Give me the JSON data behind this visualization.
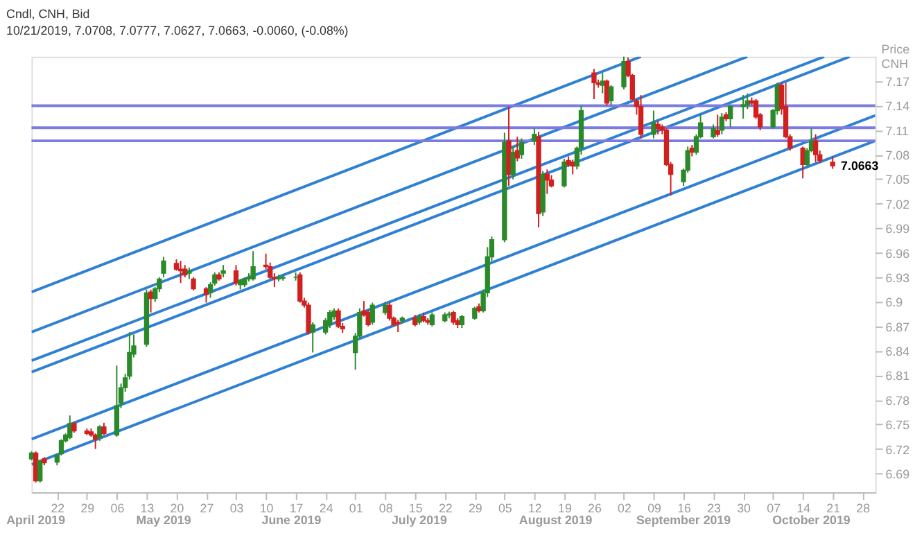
{
  "chart_data": {
    "type": "candlestick",
    "title": "Cndl, CNH, Bid",
    "subtitle": "10/21/2019, 7.0708, 7.0777, 7.0627, 7.0663, -0.0060, (-0.08%)",
    "ylabel": "Price CNH",
    "x": [
      "2019-04-16",
      "2019-04-17",
      "2019-04-18",
      "2019-04-19",
      "2019-04-22",
      "2019-04-23",
      "2019-04-24",
      "2019-04-25",
      "2019-04-26",
      "2019-04-29",
      "2019-04-30",
      "2019-05-01",
      "2019-05-02",
      "2019-05-03",
      "2019-05-06",
      "2019-05-07",
      "2019-05-08",
      "2019-05-09",
      "2019-05-10",
      "2019-05-13",
      "2019-05-14",
      "2019-05-15",
      "2019-05-16",
      "2019-05-17",
      "2019-05-20",
      "2019-05-21",
      "2019-05-22",
      "2019-05-23",
      "2019-05-24",
      "2019-05-27",
      "2019-05-28",
      "2019-05-29",
      "2019-05-30",
      "2019-05-31",
      "2019-06-03",
      "2019-06-04",
      "2019-06-05",
      "2019-06-06",
      "2019-06-07",
      "2019-06-10",
      "2019-06-11",
      "2019-06-12",
      "2019-06-13",
      "2019-06-14",
      "2019-06-17",
      "2019-06-18",
      "2019-06-19",
      "2019-06-20",
      "2019-06-21",
      "2019-06-24",
      "2019-06-25",
      "2019-06-26",
      "2019-06-27",
      "2019-06-28",
      "2019-07-01",
      "2019-07-02",
      "2019-07-03",
      "2019-07-04",
      "2019-07-05",
      "2019-07-08",
      "2019-07-09",
      "2019-07-10",
      "2019-07-11",
      "2019-07-12",
      "2019-07-15",
      "2019-07-16",
      "2019-07-17",
      "2019-07-18",
      "2019-07-19",
      "2019-07-22",
      "2019-07-23",
      "2019-07-24",
      "2019-07-25",
      "2019-07-26",
      "2019-07-29",
      "2019-07-30",
      "2019-07-31",
      "2019-08-01",
      "2019-08-02",
      "2019-08-05",
      "2019-08-06",
      "2019-08-07",
      "2019-08-08",
      "2019-08-09",
      "2019-08-12",
      "2019-08-13",
      "2019-08-14",
      "2019-08-15",
      "2019-08-16",
      "2019-08-19",
      "2019-08-20",
      "2019-08-21",
      "2019-08-22",
      "2019-08-23",
      "2019-08-26",
      "2019-08-27",
      "2019-08-28",
      "2019-08-29",
      "2019-08-30",
      "2019-09-02",
      "2019-09-03",
      "2019-09-04",
      "2019-09-05",
      "2019-09-06",
      "2019-09-09",
      "2019-09-10",
      "2019-09-11",
      "2019-09-12",
      "2019-09-13",
      "2019-09-16",
      "2019-09-17",
      "2019-09-18",
      "2019-09-19",
      "2019-09-20",
      "2019-09-23",
      "2019-09-24",
      "2019-09-25",
      "2019-09-26",
      "2019-09-27",
      "2019-09-30",
      "2019-10-01",
      "2019-10-02",
      "2019-10-03",
      "2019-10-04",
      "2019-10-07",
      "2019-10-08",
      "2019-10-09",
      "2019-10-10",
      "2019-10-11",
      "2019-10-14",
      "2019-10-15",
      "2019-10-16",
      "2019-10-17",
      "2019-10-18",
      "2019-10-21"
    ],
    "ohlc": [
      [
        6.708,
        6.717,
        6.706,
        6.715
      ],
      [
        6.715,
        6.717,
        6.679,
        6.681
      ],
      [
        6.681,
        6.707,
        6.679,
        6.706
      ],
      [
        6.708,
        6.71,
        6.7,
        6.703
      ],
      [
        6.704,
        6.714,
        6.7,
        6.712
      ],
      [
        6.714,
        6.732,
        6.712,
        6.73
      ],
      [
        6.73,
        6.739,
        6.728,
        6.737
      ],
      [
        6.734,
        6.761,
        6.732,
        6.751
      ],
      [
        6.751,
        6.753,
        6.74,
        6.742
      ],
      [
        6.742,
        6.745,
        6.737,
        6.739
      ],
      [
        6.741,
        6.745,
        6.735,
        6.737
      ],
      [
        6.737,
        6.739,
        6.72,
        6.732
      ],
      [
        6.734,
        6.749,
        6.73,
        6.747
      ],
      [
        6.747,
        6.752,
        6.737,
        6.739
      ],
      [
        6.737,
        6.822,
        6.735,
        6.773
      ],
      [
        6.776,
        6.8,
        6.77,
        6.795
      ],
      [
        6.795,
        6.812,
        6.79,
        6.807
      ],
      [
        6.809,
        6.863,
        6.805,
        6.838
      ],
      [
        6.836,
        6.86,
        6.832,
        6.846
      ],
      [
        6.848,
        6.915,
        6.845,
        6.911
      ],
      [
        6.912,
        6.915,
        6.887,
        6.904
      ],
      [
        6.904,
        6.918,
        6.9,
        6.916
      ],
      [
        6.916,
        6.93,
        6.912,
        6.928
      ],
      [
        6.935,
        6.955,
        6.93,
        6.95
      ],
      [
        6.947,
        6.952,
        6.938,
        6.94
      ],
      [
        6.94,
        6.95,
        6.923,
        6.938
      ],
      [
        6.94,
        6.945,
        6.93,
        6.933
      ],
      [
        6.935,
        6.942,
        6.928,
        6.938
      ],
      [
        6.928,
        6.93,
        6.914,
        6.916
      ],
      [
        6.916,
        6.918,
        6.899,
        6.909
      ],
      [
        6.911,
        6.924,
        6.905,
        6.921
      ],
      [
        6.923,
        6.936,
        6.92,
        6.933
      ],
      [
        6.933,
        6.936,
        6.926,
        6.928
      ],
      [
        6.935,
        6.945,
        6.93,
        6.938
      ],
      [
        6.938,
        6.945,
        6.92,
        6.923
      ],
      [
        6.921,
        6.928,
        6.915,
        6.926
      ],
      [
        6.921,
        6.93,
        6.918,
        6.928
      ],
      [
        6.928,
        6.935,
        6.925,
        6.93
      ],
      [
        6.928,
        6.962,
        6.926,
        6.943
      ],
      [
        6.945,
        6.959,
        6.94,
        6.943
      ],
      [
        6.943,
        6.948,
        6.928,
        6.93
      ],
      [
        6.93,
        6.935,
        6.918,
        6.928
      ],
      [
        6.928,
        6.933,
        6.925,
        6.929
      ],
      [
        6.929,
        6.933,
        6.926,
        6.93
      ],
      [
        6.93,
        6.936,
        6.926,
        6.93
      ],
      [
        6.933,
        6.936,
        6.899,
        6.901
      ],
      [
        6.901,
        6.905,
        6.893,
        6.896
      ],
      [
        6.896,
        6.899,
        6.86,
        6.863
      ],
      [
        6.863,
        6.875,
        6.838,
        6.872
      ],
      [
        6.863,
        6.88,
        6.86,
        6.877
      ],
      [
        6.872,
        6.89,
        6.868,
        6.887
      ],
      [
        6.882,
        6.892,
        6.878,
        6.889
      ],
      [
        6.889,
        6.892,
        6.868,
        6.87
      ],
      [
        6.87,
        6.874,
        6.862,
        6.867
      ],
      [
        6.838,
        6.862,
        6.817,
        6.858
      ],
      [
        6.858,
        6.892,
        6.855,
        6.887
      ],
      [
        6.889,
        6.901,
        6.882,
        6.884
      ],
      [
        6.887,
        6.89,
        6.87,
        6.872
      ],
      [
        6.875,
        6.899,
        6.872,
        6.896
      ],
      [
        6.887,
        6.9,
        6.884,
        6.896
      ],
      [
        6.896,
        6.899,
        6.877,
        6.88
      ],
      [
        6.88,
        6.882,
        6.87,
        6.872
      ],
      [
        6.875,
        6.878,
        6.863,
        6.874
      ],
      [
        6.877,
        6.882,
        6.874,
        6.88
      ],
      [
        6.88,
        6.884,
        6.87,
        6.872
      ],
      [
        6.875,
        6.885,
        6.872,
        6.882
      ],
      [
        6.882,
        6.887,
        6.875,
        6.877
      ],
      [
        6.877,
        6.88,
        6.872,
        6.875
      ],
      [
        6.872,
        6.887,
        6.87,
        6.884
      ],
      [
        6.877,
        6.887,
        6.875,
        6.884
      ],
      [
        6.884,
        6.888,
        6.88,
        6.885
      ],
      [
        6.887,
        6.889,
        6.872,
        6.875
      ],
      [
        6.877,
        6.88,
        6.868,
        6.872
      ],
      [
        6.872,
        6.884,
        6.868,
        6.882
      ],
      [
        6.88,
        6.894,
        6.878,
        6.892
      ],
      [
        6.894,
        6.898,
        6.887,
        6.889
      ],
      [
        6.889,
        6.915,
        6.887,
        6.911
      ],
      [
        6.911,
        6.967,
        6.906,
        6.955
      ],
      [
        6.955,
        6.98,
        6.95,
        6.976
      ],
      [
        6.976,
        7.107,
        6.973,
        7.095
      ],
      [
        7.097,
        7.139,
        7.042,
        7.056
      ],
      [
        7.056,
        7.09,
        7.05,
        7.083
      ],
      [
        7.085,
        7.102,
        7.072,
        7.076
      ],
      [
        7.08,
        7.1,
        7.075,
        7.095
      ],
      [
        7.097,
        7.112,
        7.092,
        7.105
      ],
      [
        7.102,
        7.108,
        6.991,
        7.008
      ],
      [
        7.01,
        7.06,
        7.005,
        7.056
      ],
      [
        7.056,
        7.062,
        7.032,
        7.049
      ],
      [
        7.049,
        7.055,
        7.04,
        7.042
      ],
      [
        7.042,
        7.075,
        7.04,
        7.071
      ],
      [
        7.073,
        7.078,
        7.065,
        7.068
      ],
      [
        7.071,
        7.074,
        7.056,
        7.066
      ],
      [
        7.066,
        7.09,
        7.062,
        7.088
      ],
      [
        7.088,
        7.14,
        7.08,
        7.134
      ],
      [
        7.18,
        7.185,
        7.148,
        7.168
      ],
      [
        7.168,
        7.172,
        7.162,
        7.166
      ],
      [
        7.165,
        7.18,
        7.155,
        7.17
      ],
      [
        7.17,
        7.172,
        7.14,
        7.143
      ],
      [
        7.146,
        7.165,
        7.141,
        7.163
      ],
      [
        7.163,
        7.2,
        7.16,
        7.194
      ],
      [
        7.194,
        7.199,
        7.175,
        7.177
      ],
      [
        7.177,
        7.179,
        7.146,
        7.148
      ],
      [
        7.146,
        7.148,
        7.129,
        7.139
      ],
      [
        7.139,
        7.153,
        7.1,
        7.105
      ],
      [
        7.105,
        7.134,
        7.1,
        7.119
      ],
      [
        7.117,
        7.122,
        7.105,
        7.112
      ],
      [
        7.114,
        7.117,
        7.105,
        7.11
      ],
      [
        7.11,
        7.112,
        7.066,
        7.068
      ],
      [
        7.068,
        7.071,
        7.03,
        7.056
      ],
      [
        7.047,
        7.063,
        7.042,
        7.061
      ],
      [
        7.061,
        7.09,
        7.058,
        7.085
      ],
      [
        7.088,
        7.092,
        7.078,
        7.083
      ],
      [
        7.083,
        7.105,
        7.08,
        7.102
      ],
      [
        7.102,
        7.129,
        7.1,
        7.119
      ],
      [
        7.102,
        7.117,
        7.1,
        7.112
      ],
      [
        7.11,
        7.129,
        7.102,
        7.105
      ],
      [
        7.11,
        7.131,
        7.105,
        7.126
      ],
      [
        7.129,
        7.132,
        7.121,
        7.124
      ],
      [
        7.124,
        7.141,
        7.114,
        7.139
      ],
      [
        7.139,
        7.153,
        7.124,
        7.141
      ],
      [
        7.141,
        7.155,
        7.136,
        7.146
      ],
      [
        7.146,
        7.15,
        7.141,
        7.143
      ],
      [
        7.146,
        7.148,
        7.124,
        7.126
      ],
      [
        7.129,
        7.131,
        7.11,
        7.114
      ],
      [
        7.114,
        7.136,
        7.112,
        7.134
      ],
      [
        7.134,
        7.168,
        7.129,
        7.165
      ],
      [
        7.165,
        7.168,
        7.129,
        7.136
      ],
      [
        7.139,
        7.168,
        7.1,
        7.102
      ],
      [
        7.102,
        7.105,
        7.085,
        7.088
      ],
      [
        7.088,
        7.09,
        7.051,
        7.068
      ],
      [
        7.068,
        7.088,
        7.066,
        7.085
      ],
      [
        7.085,
        7.112,
        7.083,
        7.097
      ],
      [
        7.097,
        7.105,
        7.071,
        7.08
      ],
      [
        7.08,
        7.085,
        7.07,
        7.073
      ],
      [
        7.0708,
        7.0777,
        7.0627,
        7.0663
      ]
    ],
    "colors": [
      "#2a8a2a",
      "#d02020",
      "#2a8a2a",
      "#d02020",
      "#2a8a2a",
      "#2a8a2a",
      "#2a8a2a",
      "#2a8a2a",
      "#d02020",
      "#d02020",
      "#d02020",
      "#d02020",
      "#2a8a2a",
      "#d02020",
      "#2a8a2a",
      "#2a8a2a",
      "#2a8a2a",
      "#2a8a2a",
      "#2a8a2a",
      "#2a8a2a",
      "#d02020",
      "#2a8a2a",
      "#2a8a2a",
      "#2a8a2a",
      "#d02020",
      "#d02020",
      "#d02020",
      "#2a8a2a",
      "#d02020",
      "#d02020",
      "#2a8a2a",
      "#2a8a2a",
      "#d02020",
      "#2a8a2a",
      "#d02020",
      "#2a8a2a",
      "#2a8a2a",
      "#2a8a2a",
      "#2a8a2a",
      "#d02020",
      "#d02020",
      "#d02020",
      "#2a8a2a",
      "#2a8a2a",
      "#2a8a2a",
      "#d02020",
      "#d02020",
      "#d02020",
      "#2a8a2a",
      "#2a8a2a",
      "#2a8a2a",
      "#2a8a2a",
      "#d02020",
      "#d02020",
      "#2a8a2a",
      "#2a8a2a",
      "#d02020",
      "#d02020",
      "#2a8a2a",
      "#2a8a2a",
      "#d02020",
      "#d02020",
      "#d02020",
      "#2a8a2a",
      "#d02020",
      "#2a8a2a",
      "#d02020",
      "#d02020",
      "#2a8a2a",
      "#2a8a2a",
      "#2a8a2a",
      "#d02020",
      "#d02020",
      "#2a8a2a",
      "#2a8a2a",
      "#d02020",
      "#2a8a2a",
      "#2a8a2a",
      "#2a8a2a",
      "#2a8a2a",
      "#d02020",
      "#2a8a2a",
      "#d02020",
      "#2a8a2a",
      "#2a8a2a",
      "#d02020",
      "#2a8a2a",
      "#d02020",
      "#d02020",
      "#2a8a2a",
      "#d02020",
      "#d02020",
      "#2a8a2a",
      "#2a8a2a",
      "#d02020",
      "#d02020",
      "#2a8a2a",
      "#d02020",
      "#2a8a2a",
      "#2a8a2a",
      "#d02020",
      "#d02020",
      "#d02020",
      "#d02020",
      "#2a8a2a",
      "#d02020",
      "#d02020",
      "#d02020",
      "#d02020",
      "#2a8a2a",
      "#2a8a2a",
      "#d02020",
      "#2a8a2a",
      "#2a8a2a",
      "#2a8a2a",
      "#d02020",
      "#2a8a2a",
      "#d02020",
      "#2a8a2a",
      "#2a8a2a",
      "#2a8a2a",
      "#d02020",
      "#d02020",
      "#d02020",
      "#2a8a2a",
      "#2a8a2a",
      "#d02020",
      "#d02020",
      "#d02020",
      "#d02020",
      "#2a8a2a",
      "#2a8a2a",
      "#d02020",
      "#d02020",
      "#d02020"
    ],
    "series": [
      {
        "type": "line",
        "color": "#2f80d4",
        "x": [
          "2019-04-16",
          "2019-09-06"
        ],
        "values": [
          6.912,
          7.2
        ]
      },
      {
        "type": "line",
        "color": "#2f80d4",
        "x": [
          "2019-04-16",
          "2019-10-01"
        ],
        "values": [
          6.863,
          7.2
        ]
      },
      {
        "type": "line",
        "color": "#2f80d4",
        "x": [
          "2019-04-16",
          "2019-10-19"
        ],
        "values": [
          6.828,
          7.2
        ]
      },
      {
        "type": "line",
        "color": "#2f80d4",
        "x": [
          "2019-04-16",
          "2019-10-25"
        ],
        "values": [
          6.814,
          7.2
        ]
      },
      {
        "type": "line",
        "color": "#2f80d4",
        "x": [
          "2019-04-16",
          "2019-10-31"
        ],
        "values": [
          6.732,
          7.128
        ]
      },
      {
        "type": "line",
        "color": "#2f80d4",
        "x": [
          "2019-04-16",
          "2019-10-31"
        ],
        "values": [
          6.701,
          7.097
        ]
      }
    ],
    "ref_lines": [
      {
        "axis": "y",
        "value": 7.14,
        "color": "#7b7be0"
      },
      {
        "axis": "y",
        "value": 7.113,
        "color": "#7b7be0"
      },
      {
        "axis": "y",
        "value": 7.097,
        "color": "#7b7be0"
      }
    ],
    "annotations": [
      {
        "text": "7.0663",
        "x": "2019-10-21",
        "y": 7.0663
      }
    ],
    "xlim": [
      "2019-04-16",
      "2019-10-31"
    ],
    "x2lim": [
      "2019-04-16",
      "2019-10-31"
    ],
    "xticks": [
      {
        "value": "2019-04-22",
        "label": "22"
      },
      {
        "value": "2019-04-29",
        "label": "29"
      },
      {
        "value": "2019-05-06",
        "label": "06"
      },
      {
        "value": "2019-05-13",
        "label": "13"
      },
      {
        "value": "2019-05-20",
        "label": "20"
      },
      {
        "value": "2019-05-27",
        "label": "27"
      },
      {
        "value": "2019-06-03",
        "label": "03"
      },
      {
        "value": "2019-06-10",
        "label": "10"
      },
      {
        "value": "2019-06-17",
        "label": "17"
      },
      {
        "value": "2019-06-24",
        "label": "24"
      },
      {
        "value": "2019-07-01",
        "label": "01"
      },
      {
        "value": "2019-07-08",
        "label": "08"
      },
      {
        "value": "2019-07-15",
        "label": "15"
      },
      {
        "value": "2019-07-22",
        "label": "22"
      },
      {
        "value": "2019-07-29",
        "label": "29"
      },
      {
        "value": "2019-08-05",
        "label": "05"
      },
      {
        "value": "2019-08-12",
        "label": "12"
      },
      {
        "value": "2019-08-19",
        "label": "19"
      },
      {
        "value": "2019-08-26",
        "label": "26"
      },
      {
        "value": "2019-09-02",
        "label": "02"
      },
      {
        "value": "2019-09-09",
        "label": "09"
      },
      {
        "value": "2019-09-16",
        "label": "16"
      },
      {
        "value": "2019-09-23",
        "label": "23"
      },
      {
        "value": "2019-09-30",
        "label": "30"
      },
      {
        "value": "2019-10-07",
        "label": "07"
      },
      {
        "value": "2019-10-14",
        "label": "14"
      },
      {
        "value": "2019-10-21",
        "label": "21"
      },
      {
        "value": "2019-10-28",
        "label": "28"
      }
    ],
    "x2ticks": [
      {
        "value": "2019-04-17",
        "label": "April 2019"
      },
      {
        "value": "2019-05-17",
        "label": "May 2019"
      },
      {
        "value": "2019-06-16",
        "label": "June 2019"
      },
      {
        "value": "2019-07-16",
        "label": "July 2019"
      },
      {
        "value": "2019-08-17",
        "label": "August 2019"
      },
      {
        "value": "2019-09-16",
        "label": "September 2019"
      },
      {
        "value": "2019-10-16",
        "label": "October 2019"
      }
    ],
    "ylim": [
      6.667,
      7.2
    ],
    "yticks": [
      6.69,
      6.72,
      6.75,
      6.78,
      6.81,
      6.84,
      6.87,
      6.9,
      6.93,
      6.96,
      6.99,
      7.02,
      7.05,
      7.08,
      7.11,
      7.14,
      7.17
    ]
  }
}
